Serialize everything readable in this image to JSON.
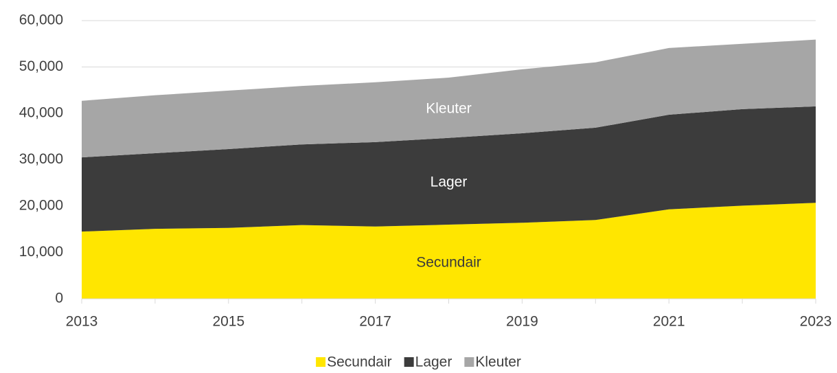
{
  "chart_data": {
    "type": "stacked_area",
    "x": [
      2013,
      2014,
      2015,
      2016,
      2017,
      2018,
      2019,
      2020,
      2021,
      2022,
      2023
    ],
    "series": [
      {
        "name": "Secundair",
        "color": "#ffe600",
        "label_color": "#3a3a3a",
        "values": [
          14500,
          15100,
          15300,
          15900,
          15600,
          16000,
          16400,
          17000,
          19300,
          20100,
          20700
        ]
      },
      {
        "name": "Lager",
        "color": "#3c3c3c",
        "label_color": "#ffffff",
        "values": [
          16000,
          16300,
          17000,
          17400,
          18200,
          18700,
          19300,
          19900,
          20400,
          20800,
          20800
        ]
      },
      {
        "name": "Kleuter",
        "color": "#a6a6a6",
        "label_color": "#ffffff",
        "values": [
          12200,
          12500,
          12600,
          12600,
          12900,
          13000,
          13800,
          14100,
          14400,
          14100,
          14400
        ]
      }
    ],
    "xlim": [
      2013,
      2023
    ],
    "xticks": [
      2013,
      2015,
      2017,
      2019,
      2021,
      2023
    ],
    "ylim": [
      0,
      60000
    ],
    "yticks": [
      0,
      {
        "value": 10000,
        "label": "10,000"
      },
      {
        "value": 20000,
        "label": "20,000"
      },
      {
        "value": 30000,
        "label": "30,000"
      },
      {
        "value": 40000,
        "label": "40,000"
      },
      {
        "value": 50000,
        "label": "50,000"
      },
      {
        "value": 60000,
        "label": "60,000"
      }
    ],
    "grid": true,
    "legend": "bottom"
  }
}
